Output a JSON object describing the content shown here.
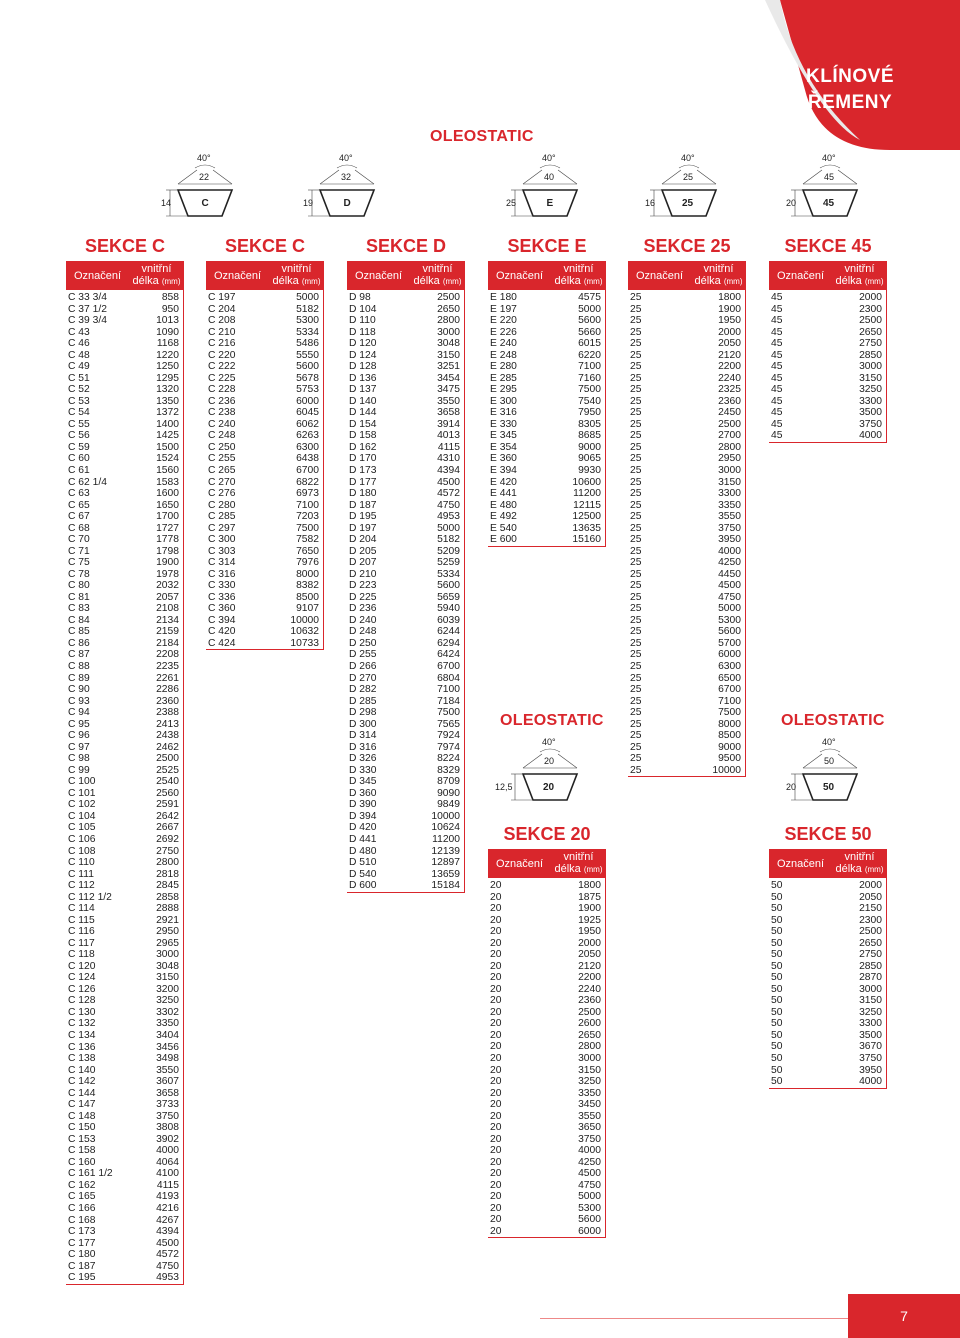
{
  "title": {
    "line1": "KLÍNOVÉ",
    "line2": "ŘEMENY"
  },
  "brand": "OLEOSTATIC",
  "col_headers": {
    "designation": "Označení",
    "length_line1": "vnitřní",
    "length_line2": "délka",
    "length_unit": "(mm)"
  },
  "page_number": "7",
  "profiles_top": [
    {
      "angle": "40°",
      "top": "22",
      "height": "14",
      "label": "C"
    },
    {
      "angle": "40°",
      "top": "32",
      "height": "19",
      "label": "D"
    },
    {
      "angle": "40°",
      "top": "40",
      "height": "25",
      "label": "E"
    },
    {
      "angle": "40°",
      "top": "25",
      "height": "16",
      "label": "25"
    },
    {
      "angle": "40°",
      "top": "45",
      "height": "20",
      "label": "45"
    }
  ],
  "profiles_mid": [
    {
      "angle": "40°",
      "top": "20",
      "height": "12,5",
      "label": "20"
    },
    {
      "angle": "40°",
      "top": "50",
      "height": "20",
      "label": "50"
    }
  ],
  "sections": [
    {
      "title": "SEKCE C",
      "rows": [
        [
          "C 33 3/4",
          "858"
        ],
        [
          "C 37 1/2",
          "950"
        ],
        [
          "C 39 3/4",
          "1013"
        ],
        [
          "C 43",
          "1090"
        ],
        [
          "C 46",
          "1168"
        ],
        [
          "C 48",
          "1220"
        ],
        [
          "C 49",
          "1250"
        ],
        [
          "C 51",
          "1295"
        ],
        [
          "C 52",
          "1320"
        ],
        [
          "C 53",
          "1350"
        ],
        [
          "C 54",
          "1372"
        ],
        [
          "C 55",
          "1400"
        ],
        [
          "C 56",
          "1425"
        ],
        [
          "C 59",
          "1500"
        ],
        [
          "C 60",
          "1524"
        ],
        [
          "C 61",
          "1560"
        ],
        [
          "C 62 1/4",
          "1583"
        ],
        [
          "C 63",
          "1600"
        ],
        [
          "C 65",
          "1650"
        ],
        [
          "C 67",
          "1700"
        ],
        [
          "C 68",
          "1727"
        ],
        [
          "C 70",
          "1778"
        ],
        [
          "C 71",
          "1798"
        ],
        [
          "C 75",
          "1900"
        ],
        [
          "C 78",
          "1978"
        ],
        [
          "C 80",
          "2032"
        ],
        [
          "C 81",
          "2057"
        ],
        [
          "C 83",
          "2108"
        ],
        [
          "C 84",
          "2134"
        ],
        [
          "C 85",
          "2159"
        ],
        [
          "C 86",
          "2184"
        ],
        [
          "C 87",
          "2208"
        ],
        [
          "C 88",
          "2235"
        ],
        [
          "C 89",
          "2261"
        ],
        [
          "C 90",
          "2286"
        ],
        [
          "C 93",
          "2360"
        ],
        [
          "C 94",
          "2388"
        ],
        [
          "C 95",
          "2413"
        ],
        [
          "C 96",
          "2438"
        ],
        [
          "C 97",
          "2462"
        ],
        [
          "C 98",
          "2500"
        ],
        [
          "C 99",
          "2525"
        ],
        [
          "C 100",
          "2540"
        ],
        [
          "C 101",
          "2560"
        ],
        [
          "C 102",
          "2591"
        ],
        [
          "C 104",
          "2642"
        ],
        [
          "C 105",
          "2667"
        ],
        [
          "C 106",
          "2692"
        ],
        [
          "C 108",
          "2750"
        ],
        [
          "C 110",
          "2800"
        ],
        [
          "C 111",
          "2818"
        ],
        [
          "C 112",
          "2845"
        ],
        [
          "C 112 1/2",
          "2858"
        ],
        [
          "C 114",
          "2888"
        ],
        [
          "C 115",
          "2921"
        ],
        [
          "C 116",
          "2950"
        ],
        [
          "C 117",
          "2965"
        ],
        [
          "C 118",
          "3000"
        ],
        [
          "C 120",
          "3048"
        ],
        [
          "C 124",
          "3150"
        ],
        [
          "C 126",
          "3200"
        ],
        [
          "C 128",
          "3250"
        ],
        [
          "C 130",
          "3302"
        ],
        [
          "C 132",
          "3350"
        ],
        [
          "C 134",
          "3404"
        ],
        [
          "C 136",
          "3456"
        ],
        [
          "C 138",
          "3498"
        ],
        [
          "C 140",
          "3550"
        ],
        [
          "C 142",
          "3607"
        ],
        [
          "C 144",
          "3658"
        ],
        [
          "C 147",
          "3733"
        ],
        [
          "C 148",
          "3750"
        ],
        [
          "C 150",
          "3808"
        ],
        [
          "C 153",
          "3902"
        ],
        [
          "C 158",
          "4000"
        ],
        [
          "C 160",
          "4064"
        ],
        [
          "C 161 1/2",
          "4100"
        ],
        [
          "C 162",
          "4115"
        ],
        [
          "C 165",
          "4193"
        ],
        [
          "C 166",
          "4216"
        ],
        [
          "C 168",
          "4267"
        ],
        [
          "C 173",
          "4394"
        ],
        [
          "C 177",
          "4500"
        ],
        [
          "C 180",
          "4572"
        ],
        [
          "C 187",
          "4750"
        ],
        [
          "C 195",
          "4953"
        ]
      ]
    },
    {
      "title": "SEKCE C",
      "rows": [
        [
          "C 197",
          "5000"
        ],
        [
          "C 204",
          "5182"
        ],
        [
          "C 208",
          "5300"
        ],
        [
          "C 210",
          "5334"
        ],
        [
          "C 216",
          "5486"
        ],
        [
          "C 220",
          "5550"
        ],
        [
          "C 222",
          "5600"
        ],
        [
          "C 225",
          "5678"
        ],
        [
          "C 228",
          "5753"
        ],
        [
          "C 236",
          "6000"
        ],
        [
          "C 238",
          "6045"
        ],
        [
          "C 240",
          "6062"
        ],
        [
          "C 248",
          "6263"
        ],
        [
          "C 250",
          "6300"
        ],
        [
          "C 255",
          "6438"
        ],
        [
          "C 265",
          "6700"
        ],
        [
          "C 270",
          "6822"
        ],
        [
          "C 276",
          "6973"
        ],
        [
          "C 280",
          "7100"
        ],
        [
          "C 285",
          "7203"
        ],
        [
          "C 297",
          "7500"
        ],
        [
          "C 300",
          "7582"
        ],
        [
          "C 303",
          "7650"
        ],
        [
          "C 314",
          "7976"
        ],
        [
          "C 316",
          "8000"
        ],
        [
          "C 330",
          "8382"
        ],
        [
          "C 336",
          "8500"
        ],
        [
          "C 360",
          "9107"
        ],
        [
          "C 394",
          "10000"
        ],
        [
          "C 420",
          "10632"
        ],
        [
          "C 424",
          "10733"
        ]
      ]
    },
    {
      "title": "SEKCE D",
      "rows": [
        [
          "D 98",
          "2500"
        ],
        [
          "D 104",
          "2650"
        ],
        [
          "D 110",
          "2800"
        ],
        [
          "D 118",
          "3000"
        ],
        [
          "D 120",
          "3048"
        ],
        [
          "D 124",
          "3150"
        ],
        [
          "D 128",
          "3251"
        ],
        [
          "D 136",
          "3454"
        ],
        [
          "D 137",
          "3475"
        ],
        [
          "D 140",
          "3550"
        ],
        [
          "D 144",
          "3658"
        ],
        [
          "D 154",
          "3914"
        ],
        [
          "D 158",
          "4013"
        ],
        [
          "D 162",
          "4115"
        ],
        [
          "D 170",
          "4310"
        ],
        [
          "D 173",
          "4394"
        ],
        [
          "D 177",
          "4500"
        ],
        [
          "D 180",
          "4572"
        ],
        [
          "D 187",
          "4750"
        ],
        [
          "D 195",
          "4953"
        ],
        [
          "D 197",
          "5000"
        ],
        [
          "D 204",
          "5182"
        ],
        [
          "D 205",
          "5209"
        ],
        [
          "D 207",
          "5259"
        ],
        [
          "D 210",
          "5334"
        ],
        [
          "D 223",
          "5600"
        ],
        [
          "D 225",
          "5659"
        ],
        [
          "D 236",
          "5940"
        ],
        [
          "D 240",
          "6039"
        ],
        [
          "D 248",
          "6244"
        ],
        [
          "D 250",
          "6294"
        ],
        [
          "D 255",
          "6424"
        ],
        [
          "D 266",
          "6700"
        ],
        [
          "D 270",
          "6804"
        ],
        [
          "D 282",
          "7100"
        ],
        [
          "D 285",
          "7184"
        ],
        [
          "D 298",
          "7500"
        ],
        [
          "D 300",
          "7565"
        ],
        [
          "D 314",
          "7924"
        ],
        [
          "D 316",
          "7974"
        ],
        [
          "D 326",
          "8224"
        ],
        [
          "D 330",
          "8329"
        ],
        [
          "D 345",
          "8709"
        ],
        [
          "D 360",
          "9090"
        ],
        [
          "D 390",
          "9849"
        ],
        [
          "D 394",
          "10000"
        ],
        [
          "D 420",
          "10624"
        ],
        [
          "D 441",
          "11200"
        ],
        [
          "D 480",
          "12139"
        ],
        [
          "D 510",
          "12897"
        ],
        [
          "D 540",
          "13659"
        ],
        [
          "D 600",
          "15184"
        ]
      ]
    },
    {
      "title": "SEKCE E",
      "rows": [
        [
          "E 180",
          "4575"
        ],
        [
          "E 197",
          "5000"
        ],
        [
          "E 220",
          "5600"
        ],
        [
          "E 226",
          "5660"
        ],
        [
          "E 240",
          "6015"
        ],
        [
          "E 248",
          "6220"
        ],
        [
          "E 280",
          "7100"
        ],
        [
          "E 285",
          "7160"
        ],
        [
          "E 295",
          "7500"
        ],
        [
          "E 300",
          "7540"
        ],
        [
          "E 316",
          "7950"
        ],
        [
          "E 330",
          "8305"
        ],
        [
          "E 345",
          "8685"
        ],
        [
          "E 354",
          "9000"
        ],
        [
          "E 360",
          "9065"
        ],
        [
          "E 394",
          "9930"
        ],
        [
          "E 420",
          "10600"
        ],
        [
          "E 441",
          "11200"
        ],
        [
          "E 480",
          "12115"
        ],
        [
          "E 492",
          "12500"
        ],
        [
          "E 540",
          "13635"
        ],
        [
          "E 600",
          "15160"
        ]
      ]
    },
    {
      "title": "SEKCE 25",
      "rows": [
        [
          "25",
          "1800"
        ],
        [
          "25",
          "1900"
        ],
        [
          "25",
          "1950"
        ],
        [
          "25",
          "2000"
        ],
        [
          "25",
          "2050"
        ],
        [
          "25",
          "2120"
        ],
        [
          "25",
          "2200"
        ],
        [
          "25",
          "2240"
        ],
        [
          "25",
          "2325"
        ],
        [
          "25",
          "2360"
        ],
        [
          "25",
          "2450"
        ],
        [
          "25",
          "2500"
        ],
        [
          "25",
          "2700"
        ],
        [
          "25",
          "2800"
        ],
        [
          "25",
          "2950"
        ],
        [
          "25",
          "3000"
        ],
        [
          "25",
          "3150"
        ],
        [
          "25",
          "3300"
        ],
        [
          "25",
          "3350"
        ],
        [
          "25",
          "3550"
        ],
        [
          "25",
          "3750"
        ],
        [
          "25",
          "3950"
        ],
        [
          "25",
          "4000"
        ],
        [
          "25",
          "4250"
        ],
        [
          "25",
          "4450"
        ],
        [
          "25",
          "4500"
        ],
        [
          "25",
          "4750"
        ],
        [
          "25",
          "5000"
        ],
        [
          "25",
          "5300"
        ],
        [
          "25",
          "5600"
        ],
        [
          "25",
          "5700"
        ],
        [
          "25",
          "6000"
        ],
        [
          "25",
          "6300"
        ],
        [
          "25",
          "6500"
        ],
        [
          "25",
          "6700"
        ],
        [
          "25",
          "7100"
        ],
        [
          "25",
          "7500"
        ],
        [
          "25",
          "8000"
        ],
        [
          "25",
          "8500"
        ],
        [
          "25",
          "9000"
        ],
        [
          "25",
          "9500"
        ],
        [
          "25",
          "10000"
        ]
      ]
    },
    {
      "title": "SEKCE 45",
      "rows": [
        [
          "45",
          "2000"
        ],
        [
          "45",
          "2300"
        ],
        [
          "45",
          "2500"
        ],
        [
          "45",
          "2650"
        ],
        [
          "45",
          "2750"
        ],
        [
          "45",
          "2850"
        ],
        [
          "45",
          "3000"
        ],
        [
          "45",
          "3150"
        ],
        [
          "45",
          "3250"
        ],
        [
          "45",
          "3300"
        ],
        [
          "45",
          "3500"
        ],
        [
          "45",
          "3750"
        ],
        [
          "45",
          "4000"
        ]
      ]
    },
    {
      "title": "SEKCE 20",
      "rows": [
        [
          "20",
          "1800"
        ],
        [
          "20",
          "1875"
        ],
        [
          "20",
          "1900"
        ],
        [
          "20",
          "1925"
        ],
        [
          "20",
          "1950"
        ],
        [
          "20",
          "2000"
        ],
        [
          "20",
          "2050"
        ],
        [
          "20",
          "2120"
        ],
        [
          "20",
          "2200"
        ],
        [
          "20",
          "2240"
        ],
        [
          "20",
          "2360"
        ],
        [
          "20",
          "2500"
        ],
        [
          "20",
          "2600"
        ],
        [
          "20",
          "2650"
        ],
        [
          "20",
          "2800"
        ],
        [
          "20",
          "3000"
        ],
        [
          "20",
          "3150"
        ],
        [
          "20",
          "3250"
        ],
        [
          "20",
          "3350"
        ],
        [
          "20",
          "3450"
        ],
        [
          "20",
          "3550"
        ],
        [
          "20",
          "3650"
        ],
        [
          "20",
          "3750"
        ],
        [
          "20",
          "4000"
        ],
        [
          "20",
          "4250"
        ],
        [
          "20",
          "4500"
        ],
        [
          "20",
          "4750"
        ],
        [
          "20",
          "5000"
        ],
        [
          "20",
          "5300"
        ],
        [
          "20",
          "5600"
        ],
        [
          "20",
          "6000"
        ]
      ]
    },
    {
      "title": "SEKCE 50",
      "rows": [
        [
          "50",
          "2000"
        ],
        [
          "50",
          "2050"
        ],
        [
          "50",
          "2150"
        ],
        [
          "50",
          "2300"
        ],
        [
          "50",
          "2500"
        ],
        [
          "50",
          "2650"
        ],
        [
          "50",
          "2750"
        ],
        [
          "50",
          "2850"
        ],
        [
          "50",
          "2870"
        ],
        [
          "50",
          "3000"
        ],
        [
          "50",
          "3150"
        ],
        [
          "50",
          "3250"
        ],
        [
          "50",
          "3300"
        ],
        [
          "50",
          "3500"
        ],
        [
          "50",
          "3670"
        ],
        [
          "50",
          "3750"
        ],
        [
          "50",
          "3950"
        ],
        [
          "50",
          "4000"
        ]
      ]
    }
  ]
}
